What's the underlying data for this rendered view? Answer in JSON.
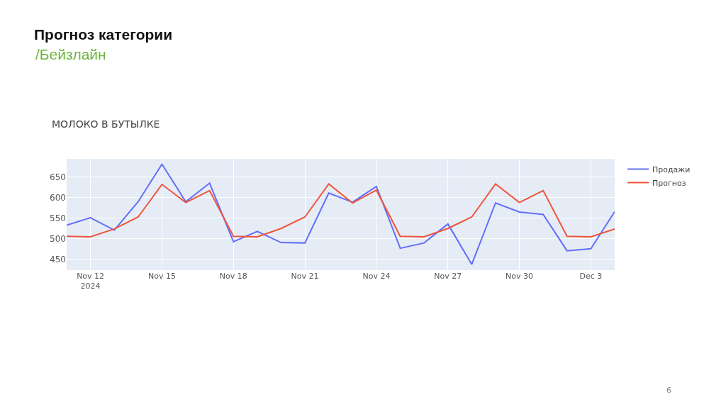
{
  "chart_data": {
    "type": "line",
    "title": "Прогноз категории",
    "subtitle": "/Бейзлайн",
    "annotations": [
      "МОЛОКО В БУТЫЛКЕ",
      "6"
    ],
    "x": [
      "2024-11-11",
      "2024-11-12",
      "2024-11-13",
      "2024-11-14",
      "2024-11-15",
      "2024-11-16",
      "2024-11-17",
      "2024-11-18",
      "2024-11-19",
      "2024-11-20",
      "2024-11-21",
      "2024-11-22",
      "2024-11-23",
      "2024-11-24",
      "2024-11-25",
      "2024-11-26",
      "2024-11-27",
      "2024-11-28",
      "2024-11-29",
      "2024-11-30",
      "2024-12-01",
      "2024-12-02",
      "2024-12-03",
      "2024-12-04"
    ],
    "series": [
      {
        "name": "Продажи",
        "color": "#636efa",
        "values": [
          533,
          551,
          521,
          590,
          681,
          590,
          635,
          493,
          518,
          491,
          490,
          611,
          589,
          627,
          477,
          490,
          536,
          438,
          587,
          565,
          559,
          471,
          476,
          566
        ]
      },
      {
        "name": "Прогноз",
        "color": "#ef553b",
        "values": [
          506,
          505,
          524,
          553,
          632,
          588,
          617,
          506,
          505,
          525,
          553,
          633,
          587,
          618,
          506,
          505,
          525,
          553,
          633,
          588,
          617,
          506,
          505,
          524
        ]
      }
    ],
    "xlim": [
      "2024-11-11",
      "2024-12-04"
    ],
    "xticks": [
      {
        "value": "2024-11-12",
        "label": "Nov 12\n2024"
      },
      {
        "value": "2024-11-15",
        "label": "Nov 15"
      },
      {
        "value": "2024-11-18",
        "label": "Nov 18"
      },
      {
        "value": "2024-11-21",
        "label": "Nov 21"
      },
      {
        "value": "2024-11-24",
        "label": "Nov 24"
      },
      {
        "value": "2024-11-27",
        "label": "Nov 27"
      },
      {
        "value": "2024-11-30",
        "label": "Nov 30"
      },
      {
        "value": "2024-12-03",
        "label": "Dec 3"
      }
    ],
    "ylim": [
      424,
      694
    ],
    "yticks": [
      450,
      500,
      550,
      600,
      650
    ],
    "grid": true,
    "legend": "top right",
    "marker": "none",
    "line_style": "solid"
  }
}
